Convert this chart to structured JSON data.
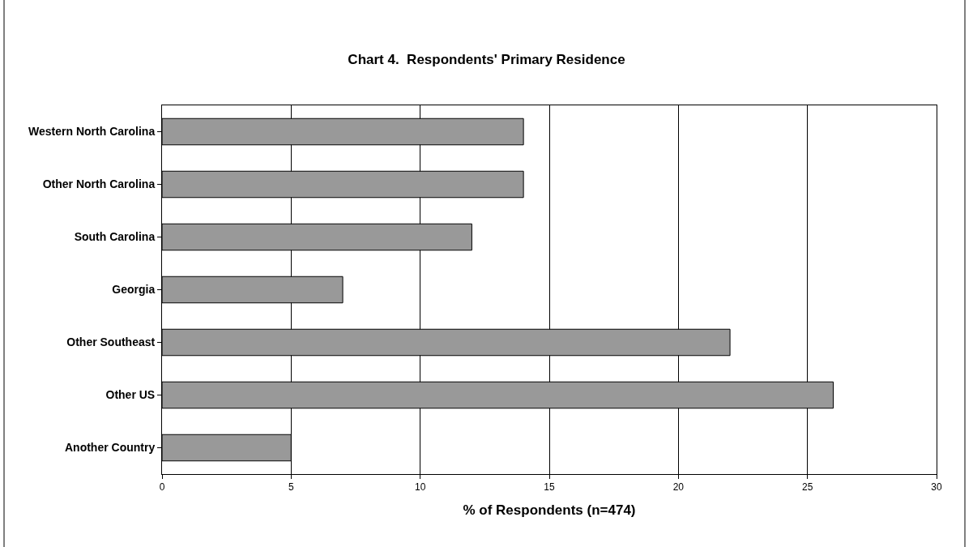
{
  "chart_data": {
    "type": "bar",
    "orientation": "horizontal",
    "title": "Chart 4.  Respondents' Primary Residence",
    "xlabel": "% of Respondents (n=474)",
    "categories": [
      "Western North Carolina",
      "Other North Carolina",
      "South Carolina",
      "Georgia",
      "Other Southeast",
      "Other US",
      "Another Country"
    ],
    "values": [
      14,
      14,
      12,
      7,
      22,
      26,
      5
    ],
    "color": "#999999",
    "xlim": [
      0,
      30
    ],
    "xticks": [
      0,
      5,
      10,
      15,
      20,
      25,
      30
    ],
    "grid": "x",
    "legend": false
  }
}
